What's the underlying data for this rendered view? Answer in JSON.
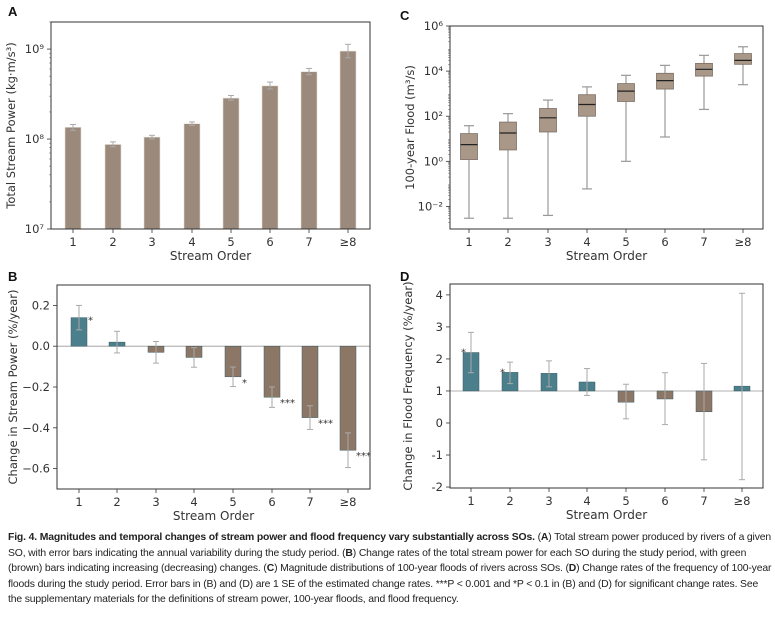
{
  "colors": {
    "bar_a": "#9b8a7b",
    "brown": "#8c7767",
    "green": "#4b7f8b",
    "box": "#a99787",
    "err": "#aaaaaa"
  },
  "chart_data": [
    {
      "panel": "A",
      "type": "bar",
      "yscale": "log",
      "ylim": [
        10000000.0,
        2000000000.0
      ],
      "ylabel": "Total Stream Power (kg·m/s³)",
      "xlabel": "Stream Order",
      "categories": [
        "1",
        "2",
        "3",
        "4",
        "5",
        "6",
        "7",
        "≥8"
      ],
      "yticks": [
        {
          "v": 10000000.0,
          "label": "10⁷"
        },
        {
          "v": 100000000.0,
          "label": "10⁸"
        },
        {
          "v": 1000000000.0,
          "label": "10⁹"
        }
      ],
      "values": [
        135000000.0,
        87000000.0,
        105000000.0,
        148000000.0,
        285000000.0,
        390000000.0,
        560000000.0,
        950000000.0
      ],
      "err_low": [
        125000000.0,
        82000000.0,
        100000000.0,
        142000000.0,
        270000000.0,
        360000000.0,
        520000000.0,
        800000000.0
      ],
      "err_high": [
        145000000.0,
        93000000.0,
        110000000.0,
        155000000.0,
        305000000.0,
        430000000.0,
        610000000.0,
        1130000000.0
      ]
    },
    {
      "panel": "B",
      "type": "bar",
      "ylim": [
        -0.7,
        0.3
      ],
      "ylabel": "Change in Stream Power (%/year)",
      "xlabel": "Stream Order",
      "categories": [
        "1",
        "2",
        "3",
        "4",
        "5",
        "6",
        "7",
        "≥8"
      ],
      "yticks": [
        {
          "v": 0.2,
          "label": "0.2"
        },
        {
          "v": 0,
          "label": "0.0"
        },
        {
          "v": -0.2,
          "label": "−0.2"
        },
        {
          "v": -0.4,
          "label": "−0.4"
        },
        {
          "v": -0.6,
          "label": "−0.6"
        }
      ],
      "baseline": 0,
      "values": [
        0.14,
        0.02,
        -0.03,
        -0.055,
        -0.15,
        -0.25,
        -0.35,
        -0.51
      ],
      "err_low": [
        0.08,
        -0.033,
        -0.083,
        -0.103,
        -0.198,
        -0.3,
        -0.408,
        -0.595
      ],
      "err_high": [
        0.2,
        0.073,
        0.023,
        -0.007,
        -0.102,
        -0.2,
        -0.292,
        -0.425
      ],
      "significance": [
        "*",
        "",
        "",
        "",
        "*",
        "***",
        "***",
        "***"
      ]
    },
    {
      "panel": "C",
      "type": "box",
      "yscale": "log",
      "ylim": [
        0.001,
        1000000.0
      ],
      "ylabel": "100-year Flood (m³/s)",
      "xlabel": "Stream Order",
      "categories": [
        "1",
        "2",
        "3",
        "4",
        "5",
        "6",
        "7",
        "≥8"
      ],
      "yticks": [
        {
          "v": 0.01,
          "label": "10⁻²"
        },
        {
          "v": 1,
          "label": "10⁰"
        },
        {
          "v": 100.0,
          "label": "10²"
        },
        {
          "v": 10000.0,
          "label": "10⁴"
        },
        {
          "v": 1000000.0,
          "label": "10⁶"
        }
      ],
      "boxes": [
        {
          "min": 0.003,
          "q1": 1.2,
          "median": 5.5,
          "q3": 17,
          "max": 38
        },
        {
          "min": 0.003,
          "q1": 3.2,
          "median": 18,
          "q3": 55,
          "max": 130
        },
        {
          "min": 0.004,
          "q1": 20,
          "median": 85,
          "q3": 220,
          "max": 520
        },
        {
          "min": 0.06,
          "q1": 100,
          "median": 330,
          "q3": 900,
          "max": 2000
        },
        {
          "min": 1,
          "q1": 450,
          "median": 1300,
          "q3": 2800,
          "max": 6500
        },
        {
          "min": 12,
          "q1": 1600,
          "median": 3800,
          "q3": 8000,
          "max": 18000
        },
        {
          "min": 200,
          "q1": 6000,
          "median": 12000,
          "q3": 22000,
          "max": 50000
        },
        {
          "min": 2500,
          "q1": 20000,
          "median": 30000,
          "q3": 60000,
          "max": 120000
        }
      ]
    },
    {
      "panel": "D",
      "type": "bar",
      "ylim": [
        -2.03,
        4.34
      ],
      "ylabel": "Change in Flood Frequency (%/year)",
      "xlabel": "Stream Order",
      "categories": [
        "1",
        "2",
        "3",
        "4",
        "5",
        "6",
        "7",
        "≥8"
      ],
      "yticks": [
        {
          "v": 4,
          "label": "4"
        },
        {
          "v": 3,
          "label": "3"
        },
        {
          "v": 2,
          "label": "2"
        },
        {
          "v": 1,
          "label": "1"
        },
        {
          "v": 0,
          "label": "0"
        },
        {
          "v": -1,
          "label": "-1"
        },
        {
          "v": -2,
          "label": "-2"
        }
      ],
      "baseline": 1,
      "values": [
        2.2,
        1.58,
        1.55,
        1.28,
        0.65,
        0.75,
        0.35,
        1.15
      ],
      "err_low": [
        1.57,
        1.23,
        1.13,
        0.86,
        0.13,
        -0.05,
        -1.15,
        -1.77
      ],
      "err_high": [
        2.83,
        1.9,
        1.94,
        1.7,
        1.21,
        1.57,
        1.86,
        4.05
      ],
      "significance": [
        "*",
        "*",
        "",
        "",
        "",
        "",
        "",
        ""
      ]
    }
  ],
  "caption": [
    {
      "b": true,
      "t": "Fig. 4. Magnitudes and temporal changes of stream power and flood frequency vary substantially across SOs."
    },
    {
      "b": false,
      "t": " ("
    },
    {
      "b": true,
      "t": "A"
    },
    {
      "b": false,
      "t": ") Total stream power produced by rivers of a given SO, with error bars indicating the annual variability during the study period. ("
    },
    {
      "b": true,
      "t": "B"
    },
    {
      "b": false,
      "t": ") Change rates of the total stream power for each SO during the study period, with green (brown) bars indicating increasing (decreasing) changes. ("
    },
    {
      "b": true,
      "t": "C"
    },
    {
      "b": false,
      "t": ") Magnitude distributions of 100-year floods of rivers across SOs. ("
    },
    {
      "b": true,
      "t": "D"
    },
    {
      "b": false,
      "t": ") Change rates of the frequency of 100-year floods during the study period. Error bars in (B) and (D) are 1 SE of the estimated change rates. ***P < 0.001 and *P < 0.1 in (B) and (D) for significant change rates. See the supplementary materials for the definitions of stream power, 100-year floods, and flood frequency."
    }
  ]
}
